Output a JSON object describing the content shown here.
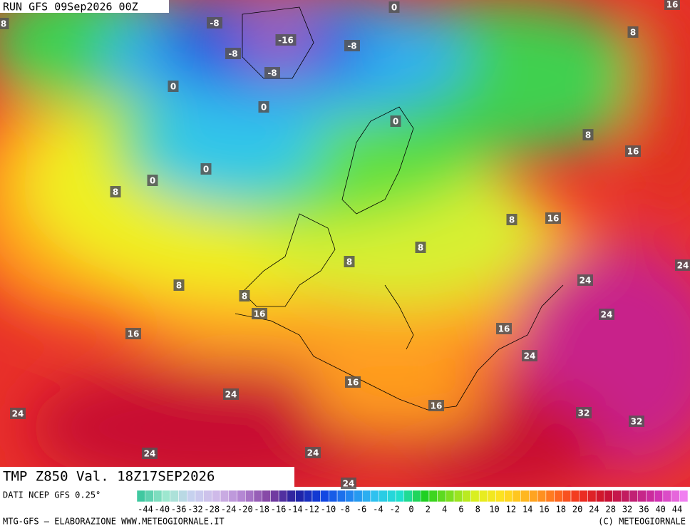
{
  "header": {
    "run": "RUN GFS 09Sep2026 00Z"
  },
  "map": {
    "contour_labels": [
      "16",
      "-8",
      "-16",
      "-8",
      "-8",
      "-8",
      "0",
      "8",
      "8",
      "0",
      "0",
      "0",
      "8",
      "16",
      "0",
      "0",
      "8",
      "8",
      "16",
      "8",
      "8",
      "24",
      "24",
      "8",
      "8",
      "16",
      "24",
      "16",
      "16",
      "24",
      "16",
      "24",
      "16",
      "24",
      "32",
      "32",
      "24",
      "24",
      "24"
    ]
  },
  "footer": {
    "field": "TMP  Z850  Val. 18Z17SEP2026",
    "source": "DATI NCEP GFS 0.25°",
    "credit": "MTG-GFS — ELABORAZIONE WWW.METEOGIORNALE.IT",
    "copyright": "(C) METEOGIORNALE",
    "scale_labels": [
      "-44",
      "-40",
      "-36",
      "-32",
      "-28",
      "-24",
      "-20",
      "-18",
      "-16",
      "-14",
      "-12",
      "-10",
      "-8",
      "-6",
      "-4",
      "-2",
      "0",
      "2",
      "4",
      "6",
      "8",
      "10",
      "12",
      "14",
      "16",
      "18",
      "20",
      "24",
      "28",
      "32",
      "36",
      "40",
      "44"
    ]
  }
}
